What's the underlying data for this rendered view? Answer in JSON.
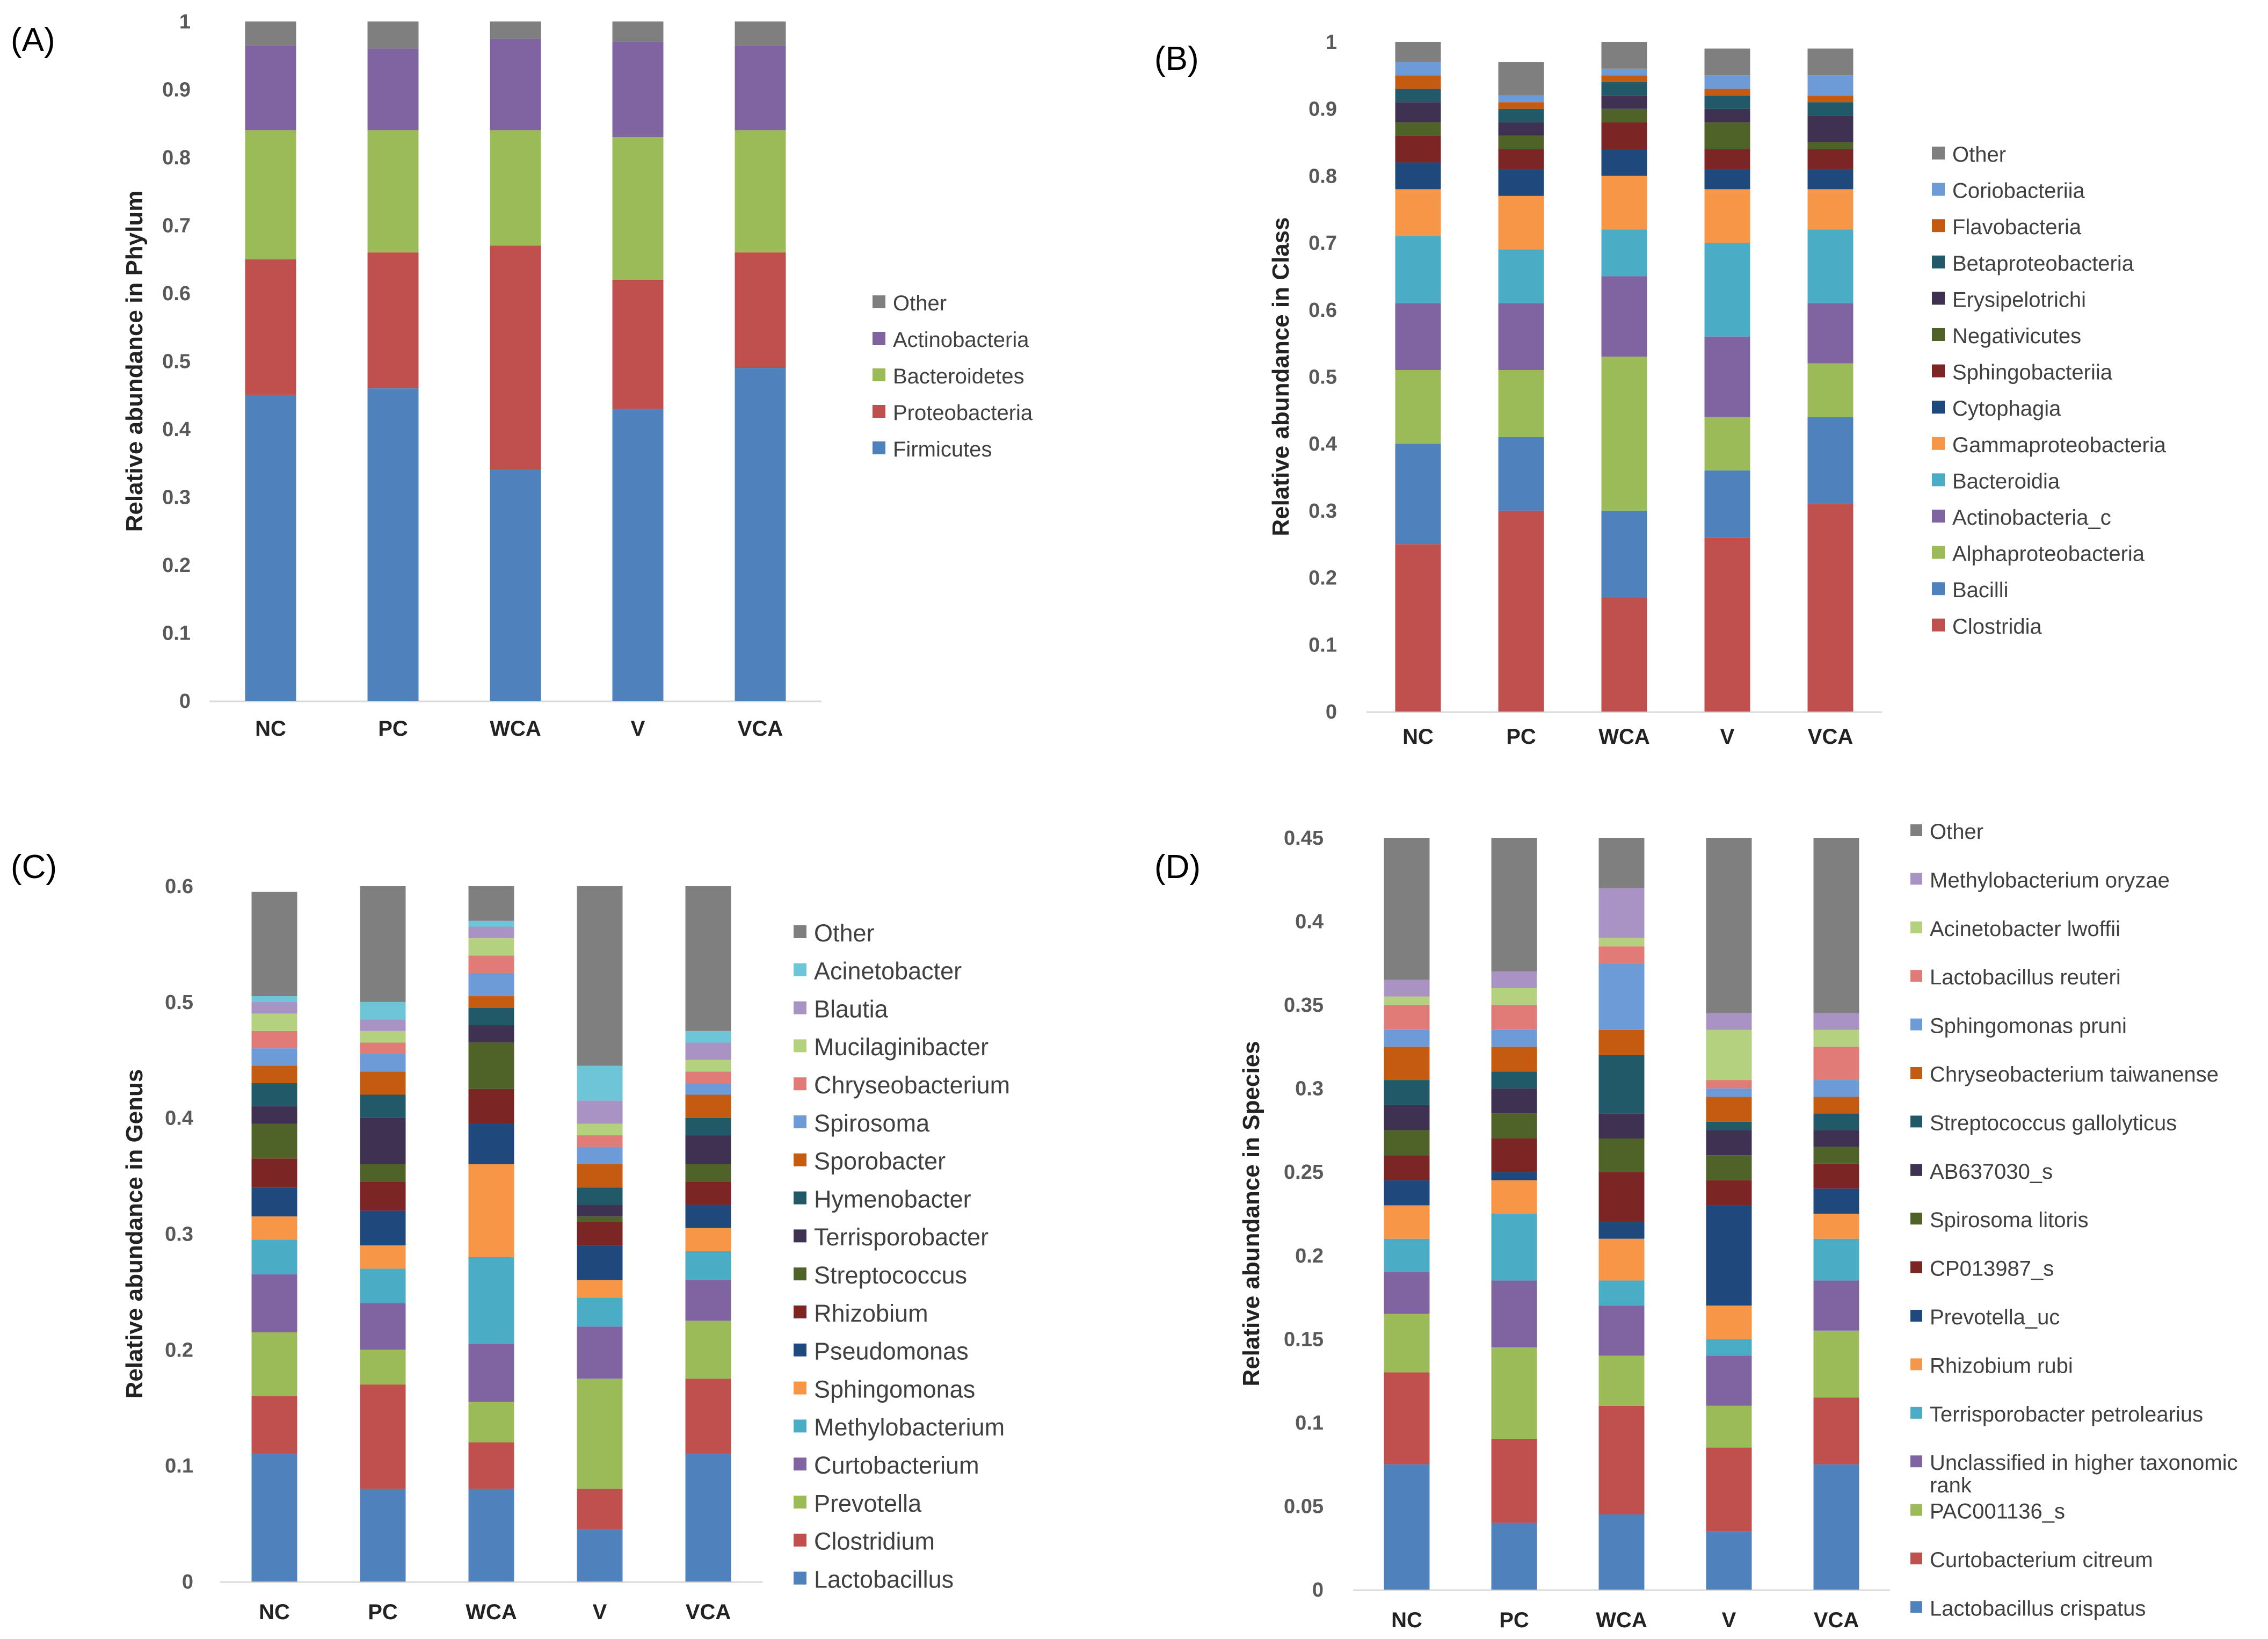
{
  "colors": {
    "Other": "#7f7f7f",
    "Actinobacteria": "#8064a2",
    "Bacteroidetes": "#9bbb59",
    "Proteobacteria": "#c0504d",
    "Firmicutes": "#4f81bd"
  },
  "chart_data": [
    {
      "panel": "(A)",
      "type": "bar",
      "stacked": true,
      "title": "",
      "ylabel": "Relative abundance in Phylum",
      "ylim": [
        0,
        1
      ],
      "yticks": [
        "0",
        "0.1",
        "0.2",
        "0.3",
        "0.4",
        "0.5",
        "0.6",
        "0.7",
        "0.8",
        "0.9",
        "1"
      ],
      "categories": [
        "NC",
        "PC",
        "WCA",
        "V",
        "VCA"
      ],
      "series": [
        {
          "name": "Firmicutes",
          "color": "#4f81bd",
          "values": [
            0.45,
            0.46,
            0.34,
            0.43,
            0.49
          ]
        },
        {
          "name": "Proteobacteria",
          "color": "#c0504d",
          "values": [
            0.2,
            0.2,
            0.33,
            0.19,
            0.17
          ]
        },
        {
          "name": "Bacteroidetes",
          "color": "#9bbb59",
          "values": [
            0.19,
            0.18,
            0.17,
            0.21,
            0.18
          ]
        },
        {
          "name": "Actinobacteria",
          "color": "#8064a2",
          "values": [
            0.125,
            0.12,
            0.135,
            0.14,
            0.125
          ]
        },
        {
          "name": "Other",
          "color": "#7f7f7f",
          "values": [
            0.035,
            0.04,
            0.025,
            0.03,
            0.035
          ]
        }
      ]
    },
    {
      "panel": "(B)",
      "type": "bar",
      "stacked": true,
      "title": "",
      "ylabel": "Relative abundance in Class",
      "ylim": [
        0,
        1
      ],
      "yticks": [
        "0",
        "0.1",
        "0.2",
        "0.3",
        "0.4",
        "0.5",
        "0.6",
        "0.7",
        "0.8",
        "0.9",
        "1"
      ],
      "categories": [
        "NC",
        "PC",
        "WCA",
        "V",
        "VCA"
      ],
      "series": [
        {
          "name": "Clostridia",
          "color": "#c0504d",
          "values": [
            0.25,
            0.3,
            0.17,
            0.26,
            0.31
          ]
        },
        {
          "name": "Bacilli",
          "color": "#4f81bd",
          "values": [
            0.15,
            0.11,
            0.13,
            0.1,
            0.13
          ]
        },
        {
          "name": "Alphaproteobacteria",
          "color": "#9bbb59",
          "values": [
            0.11,
            0.1,
            0.23,
            0.08,
            0.08
          ]
        },
        {
          "name": "Actinobacteria_c",
          "color": "#8064a2",
          "values": [
            0.1,
            0.1,
            0.12,
            0.12,
            0.09
          ]
        },
        {
          "name": "Bacteroidia",
          "color": "#4bacc6",
          "values": [
            0.1,
            0.08,
            0.07,
            0.14,
            0.11
          ]
        },
        {
          "name": "Gammaproteobacteria",
          "color": "#f79646",
          "values": [
            0.07,
            0.08,
            0.08,
            0.08,
            0.06
          ]
        },
        {
          "name": "Cytophagia",
          "color": "#1f497d",
          "values": [
            0.04,
            0.04,
            0.04,
            0.03,
            0.03
          ]
        },
        {
          "name": "Sphingobacteriia",
          "color": "#7b2525",
          "values": [
            0.04,
            0.03,
            0.04,
            0.03,
            0.03
          ]
        },
        {
          "name": "Negativicutes",
          "color": "#4f6228",
          "values": [
            0.02,
            0.02,
            0.02,
            0.04,
            0.01
          ]
        },
        {
          "name": "Erysipelotrichi",
          "color": "#3f3151",
          "values": [
            0.03,
            0.02,
            0.02,
            0.02,
            0.04
          ]
        },
        {
          "name": "Betaproteobacteria",
          "color": "#215968",
          "values": [
            0.02,
            0.02,
            0.02,
            0.02,
            0.02
          ]
        },
        {
          "name": "Flavobacteria",
          "color": "#c55a11",
          "values": [
            0.02,
            0.01,
            0.01,
            0.01,
            0.01
          ]
        },
        {
          "name": "Coriobacteriia",
          "color": "#6d9bd8",
          "values": [
            0.02,
            0.01,
            0.01,
            0.02,
            0.03
          ]
        },
        {
          "name": "Other",
          "color": "#7f7f7f",
          "values": [
            0.05,
            0.05,
            0.04,
            0.04,
            0.04
          ]
        }
      ]
    },
    {
      "panel": "(C)",
      "type": "bar",
      "stacked": true,
      "title": "",
      "ylabel": "Relative abundance in Genus",
      "ylim": [
        0,
        0.6
      ],
      "yticks": [
        "0",
        "0.1",
        "0.2",
        "0.3",
        "0.4",
        "0.5",
        "0.6"
      ],
      "categories": [
        "NC",
        "PC",
        "WCA",
        "V",
        "VCA"
      ],
      "series": [
        {
          "name": "Lactobacillus",
          "color": "#4f81bd",
          "values": [
            0.11,
            0.08,
            0.08,
            0.045,
            0.11
          ]
        },
        {
          "name": "Clostridium",
          "color": "#c0504d",
          "values": [
            0.05,
            0.09,
            0.04,
            0.035,
            0.065
          ]
        },
        {
          "name": "Prevotella",
          "color": "#9bbb59",
          "values": [
            0.055,
            0.03,
            0.035,
            0.095,
            0.05
          ]
        },
        {
          "name": "Curtobacterium",
          "color": "#8064a2",
          "values": [
            0.05,
            0.04,
            0.05,
            0.045,
            0.035
          ]
        },
        {
          "name": "Methylobacterium",
          "color": "#4bacc6",
          "values": [
            0.03,
            0.03,
            0.075,
            0.025,
            0.025
          ]
        },
        {
          "name": "Sphingomonas",
          "color": "#f79646",
          "values": [
            0.02,
            0.02,
            0.08,
            0.015,
            0.02
          ]
        },
        {
          "name": "Pseudomonas",
          "color": "#1f497d",
          "values": [
            0.025,
            0.03,
            0.035,
            0.03,
            0.02
          ]
        },
        {
          "name": "Rhizobium",
          "color": "#7b2525",
          "values": [
            0.025,
            0.025,
            0.03,
            0.02,
            0.02
          ]
        },
        {
          "name": "Streptococcus",
          "color": "#4f6228",
          "values": [
            0.03,
            0.015,
            0.04,
            0.005,
            0.015
          ]
        },
        {
          "name": "Terrisporobacter",
          "color": "#3f3151",
          "values": [
            0.015,
            0.04,
            0.015,
            0.01,
            0.025
          ]
        },
        {
          "name": "Hymenobacter",
          "color": "#215968",
          "values": [
            0.02,
            0.02,
            0.015,
            0.015,
            0.015
          ]
        },
        {
          "name": "Sporobacter",
          "color": "#c55a11",
          "values": [
            0.015,
            0.02,
            0.01,
            0.02,
            0.02
          ]
        },
        {
          "name": "Spirosoma",
          "color": "#6d9bd8",
          "values": [
            0.015,
            0.015,
            0.02,
            0.015,
            0.01
          ]
        },
        {
          "name": "Chryseobacterium",
          "color": "#e07b78",
          "values": [
            0.015,
            0.01,
            0.015,
            0.01,
            0.01
          ]
        },
        {
          "name": "Mucilaginibacter",
          "color": "#b3d17f",
          "values": [
            0.015,
            0.01,
            0.015,
            0.01,
            0.01
          ]
        },
        {
          "name": "Blautia",
          "color": "#a992c4",
          "values": [
            0.01,
            0.01,
            0.01,
            0.02,
            0.015
          ]
        },
        {
          "name": "Acinetobacter",
          "color": "#6fc5d8",
          "values": [
            0.005,
            0.015,
            0.005,
            0.03,
            0.01
          ]
        },
        {
          "name": "Other",
          "color": "#7f7f7f",
          "values": [
            0.09,
            0.1,
            0.03,
            0.16,
            0.125
          ]
        }
      ]
    },
    {
      "panel": "(D)",
      "type": "bar",
      "stacked": true,
      "title": "",
      "ylabel": "Relative abundance  in Species",
      "ylim": [
        0,
        0.45
      ],
      "yticks": [
        "0",
        "0.05",
        "0.1",
        "0.15",
        "0.2",
        "0.25",
        "0.3",
        "0.35",
        "0.4",
        "0.45"
      ],
      "categories": [
        "NC",
        "PC",
        "WCA",
        "V",
        "VCA"
      ],
      "series": [
        {
          "name": "Lactobacillus crispatus",
          "color": "#4f81bd",
          "values": [
            0.075,
            0.04,
            0.045,
            0.035,
            0.075
          ]
        },
        {
          "name": "Curtobacterium citreum",
          "color": "#c0504d",
          "values": [
            0.055,
            0.05,
            0.065,
            0.05,
            0.04
          ]
        },
        {
          "name": "PAC001136_s",
          "color": "#9bbb59",
          "values": [
            0.035,
            0.055,
            0.03,
            0.025,
            0.04
          ]
        },
        {
          "name": "Unclassified in higher taxonomic rank",
          "color": "#8064a2",
          "values": [
            0.025,
            0.04,
            0.03,
            0.03,
            0.03
          ]
        },
        {
          "name": "Terrisporobacter petrolearius",
          "color": "#4bacc6",
          "values": [
            0.02,
            0.04,
            0.015,
            0.01,
            0.025
          ]
        },
        {
          "name": "Rhizobium rubi",
          "color": "#f79646",
          "values": [
            0.02,
            0.02,
            0.025,
            0.02,
            0.015
          ]
        },
        {
          "name": "Prevotella_uc",
          "color": "#1f497d",
          "values": [
            0.015,
            0.005,
            0.01,
            0.06,
            0.015
          ]
        },
        {
          "name": "CP013987_s",
          "color": "#7b2525",
          "values": [
            0.015,
            0.02,
            0.03,
            0.015,
            0.015
          ]
        },
        {
          "name": "Spirosoma litoris",
          "color": "#4f6228",
          "values": [
            0.015,
            0.015,
            0.02,
            0.015,
            0.01
          ]
        },
        {
          "name": "AB637030_s",
          "color": "#3f3151",
          "values": [
            0.015,
            0.015,
            0.015,
            0.015,
            0.01
          ]
        },
        {
          "name": "Streptococcus gallolyticus",
          "color": "#215968",
          "values": [
            0.015,
            0.01,
            0.035,
            0.005,
            0.01
          ]
        },
        {
          "name": "Chryseobacterium taiwanense",
          "color": "#c55a11",
          "values": [
            0.02,
            0.015,
            0.015,
            0.015,
            0.01
          ]
        },
        {
          "name": "Sphingomonas pruni",
          "color": "#6d9bd8",
          "values": [
            0.01,
            0.01,
            0.04,
            0.005,
            0.01
          ]
        },
        {
          "name": "Lactobacillus reuteri",
          "color": "#e07b78",
          "values": [
            0.015,
            0.015,
            0.01,
            0.005,
            0.02
          ]
        },
        {
          "name": "Acinetobacter lwoffii",
          "color": "#b3d17f",
          "values": [
            0.005,
            0.01,
            0.005,
            0.03,
            0.01
          ]
        },
        {
          "name": "Methylobacterium oryzae",
          "color": "#a992c4",
          "values": [
            0.01,
            0.01,
            0.03,
            0.01,
            0.01
          ]
        },
        {
          "name": "Other",
          "color": "#7f7f7f",
          "values": [
            0.085,
            0.08,
            0.03,
            0.105,
            0.11
          ]
        }
      ],
      "legend_order": [
        "Other",
        "Methylobacterium oryzae",
        "Acinetobacter lwoffii",
        "Lactobacillus reuteri",
        "Sphingomonas pruni",
        "Chryseobacterium taiwanense",
        "Streptococcus gallolyticus",
        "AB637030_s",
        "Spirosoma litoris",
        "CP013987_s",
        "Prevotella_uc",
        "Rhizobium rubi",
        "Terrisporobacter petrolearius",
        "Unclassified in higher taxonomic rank",
        "PAC001136_s",
        "Curtobacterium citreum",
        "Lactobacillus crispatus"
      ]
    }
  ]
}
